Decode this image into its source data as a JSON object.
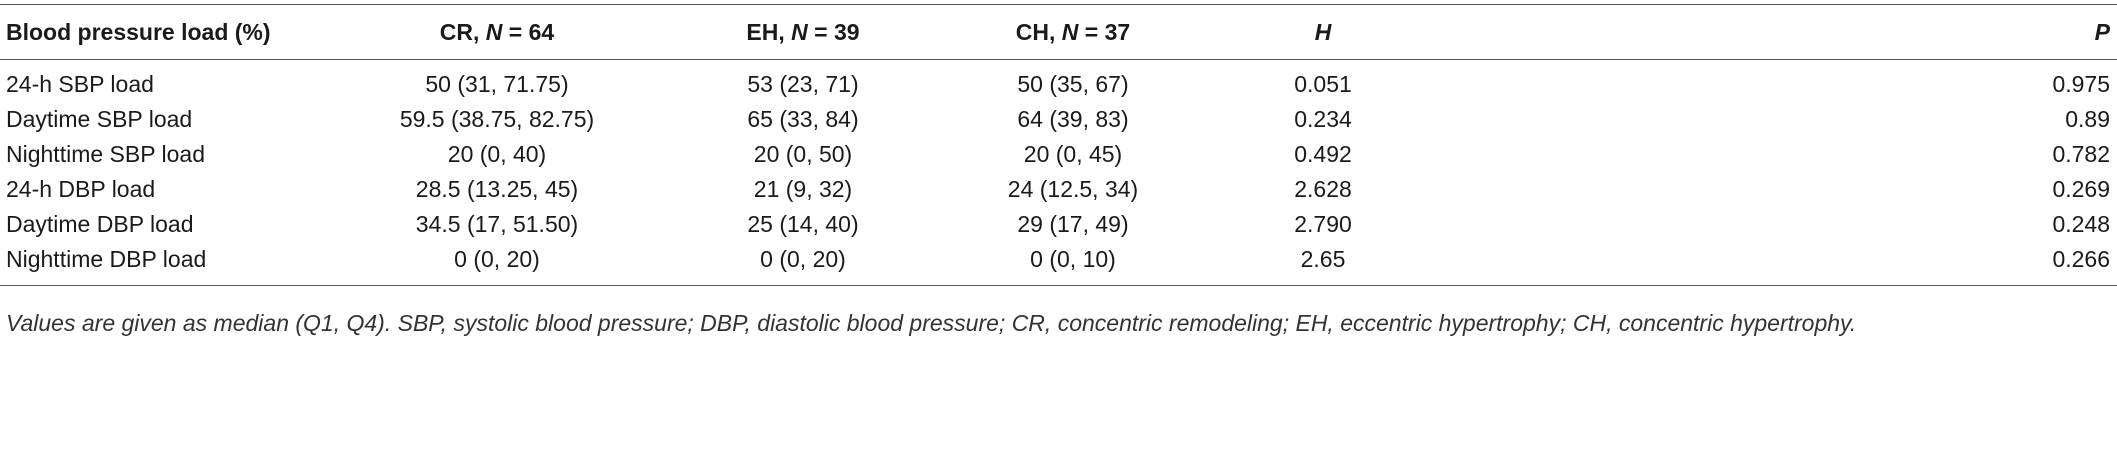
{
  "table": {
    "header": {
      "label": "Blood pressure load (%)",
      "groups": [
        {
          "name": "CR, ",
          "symbol": "N",
          "count": " = 64"
        },
        {
          "name": "EH, ",
          "symbol": "N",
          "count": " = 39"
        },
        {
          "name": "CH, ",
          "symbol": "N",
          "count": " = 37"
        }
      ],
      "h": "H",
      "p": "P"
    },
    "rows": [
      [
        "24-h SBP load",
        "50 (31, 71.75)",
        "53 (23, 71)",
        "50 (35, 67)",
        "0.051",
        "0.975"
      ],
      [
        "Daytime SBP load",
        "59.5 (38.75, 82.75)",
        "65 (33, 84)",
        "64 (39, 83)",
        "0.234",
        "0.89"
      ],
      [
        "Nighttime SBP load",
        "20 (0, 40)",
        "20 (0, 50)",
        "20 (0, 45)",
        "0.492",
        "0.782"
      ],
      [
        "24-h DBP load",
        "28.5 (13.25, 45)",
        "21 (9, 32)",
        "24 (12.5, 34)",
        "2.628",
        "0.269"
      ],
      [
        "Daytime DBP load",
        "34.5 (17, 51.50)",
        "25 (14, 40)",
        "29 (17, 49)",
        "2.790",
        "0.248"
      ],
      [
        "Nighttime DBP load",
        "0 (0, 20)",
        "0 (0, 20)",
        "0 (0, 10)",
        "2.65",
        "0.266"
      ]
    ],
    "footnote": "Values are given as median (Q1, Q4). SBP, systolic blood pressure; DBP, diastolic blood pressure; CR, concentric remodeling; EH, eccentric hypertrophy; CH, concentric hypertrophy."
  }
}
